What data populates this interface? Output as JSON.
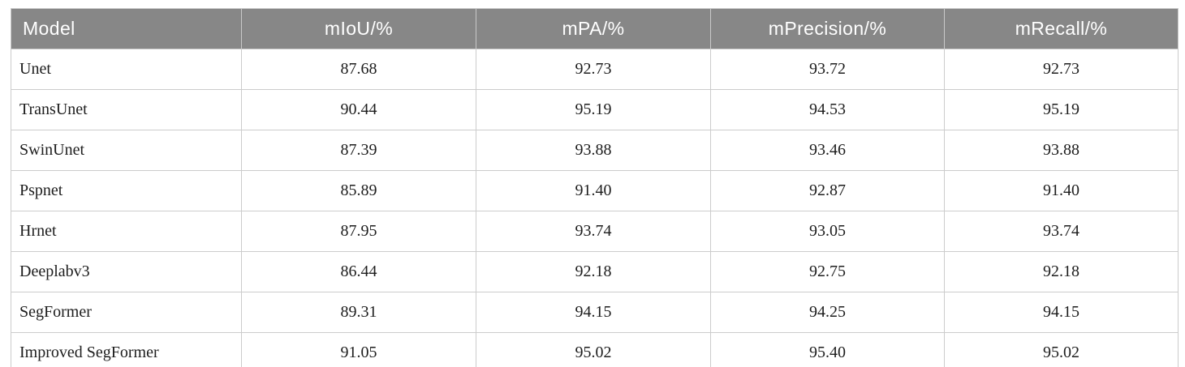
{
  "table": {
    "title": "segmentation-model-comparison",
    "columns": [
      "Model",
      "mIoU/%",
      "mPA/%",
      "mPrecision/%",
      "mRecall/%"
    ],
    "rows": [
      {
        "model": "Unet",
        "values": [
          "87.68",
          "92.73",
          "93.72",
          "92.73"
        ]
      },
      {
        "model": "TransUnet",
        "values": [
          "90.44",
          "95.19",
          "94.53",
          "95.19"
        ]
      },
      {
        "model": "SwinUnet",
        "values": [
          "87.39",
          "93.88",
          "93.46",
          "93.88"
        ]
      },
      {
        "model": "Pspnet",
        "values": [
          "85.89",
          "91.40",
          "92.87",
          "91.40"
        ]
      },
      {
        "model": "Hrnet",
        "values": [
          "87.95",
          "93.74",
          "93.05",
          "93.74"
        ]
      },
      {
        "model": "Deeplabv3",
        "values": [
          "86.44",
          "92.18",
          "92.75",
          "92.18"
        ]
      },
      {
        "model": "SegFormer",
        "values": [
          "89.31",
          "94.15",
          "94.25",
          "94.15"
        ]
      },
      {
        "model": "Improved SegFormer",
        "values": [
          "91.05",
          "95.02",
          "95.40",
          "95.02"
        ]
      }
    ]
  },
  "colors": {
    "header_bg": "#878787",
    "header_text": "#ffffff",
    "border": "#cccccc",
    "body_text": "#1d1d1d",
    "background": "#ffffff"
  }
}
